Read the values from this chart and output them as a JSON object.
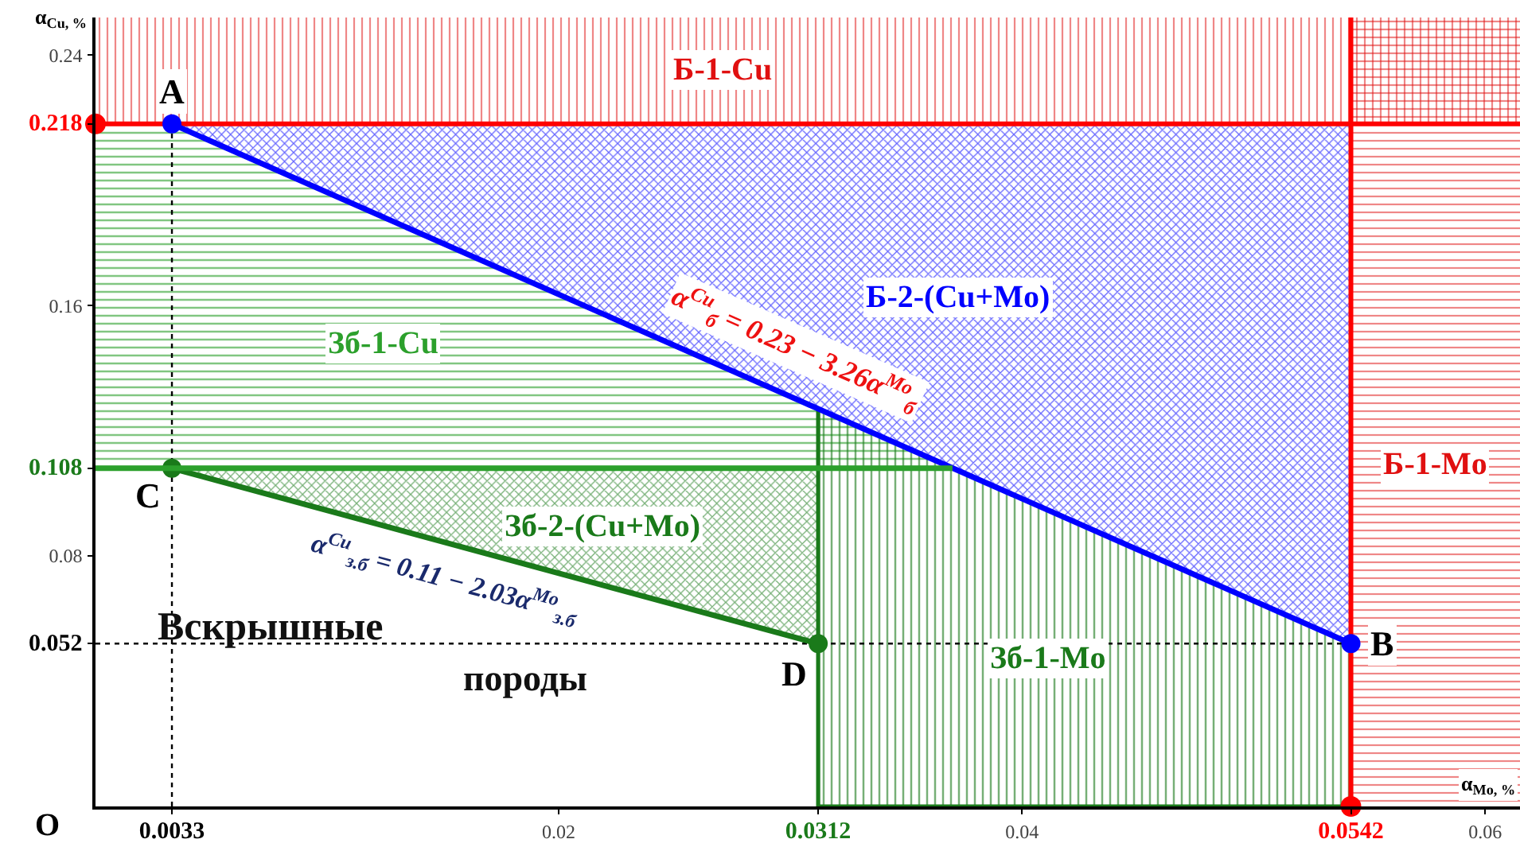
{
  "chart_data": {
    "type": "line",
    "xlabel": "α$_{Mo, %}$",
    "ylabel": "α$_{Cu, %}$",
    "xlim": [
      0,
      0.0615
    ],
    "ylim": [
      0,
      0.252
    ],
    "xticks": [
      0.0033,
      0.02,
      0.0312,
      0.04,
      0.0542,
      0.06
    ],
    "yticks": [
      0.052,
      0.08,
      0.108,
      0.16,
      0.218,
      0.24
    ],
    "line_style": "solid",
    "series": [
      {
        "name": "Б-2-(Cu+Mo)",
        "color": "#0000ff",
        "marker": "circle",
        "x": [
          0.0033,
          0.0542
        ],
        "values": [
          0.218,
          0.052
        ],
        "lower": [
          0.218,
          0.052
        ],
        "upper": [
          0.218,
          0.218
        ]
      },
      {
        "name": "Зб-2-(Cu+Mo)",
        "color": "#1a7a1a",
        "marker": "circle",
        "x": [
          0.0033,
          0.0312
        ],
        "values": [
          0.108,
          0.052
        ],
        "lower": [
          0.108,
          0.052
        ],
        "upper": [
          0.108,
          0.108
        ]
      },
      {
        "name": "Зб-1-Cu",
        "color": "#2ca02c",
        "x": [
          0,
          0.0033,
          0.037
        ],
        "values": [
          0.108,
          0.108,
          0.108
        ],
        "lower": [
          0.108,
          0.108,
          0.108
        ],
        "upper": [
          0.218,
          0.218,
          0.108
        ]
      },
      {
        "name": "Зб-1-Mo",
        "type": "area",
        "color": "#1a7a1a",
        "x": [
          0.0312,
          0.0542
        ],
        "values": [
          0.127,
          0.052
        ]
      },
      {
        "type": "scatter",
        "color": "#ff0000",
        "marker": "circle",
        "x": [
          0,
          0.0542
        ],
        "values": [
          0.218,
          0
        ]
      }
    ],
    "bands": [
      {
        "axis": "y",
        "from": 0.218,
        "to": 0.252,
        "label": "Б-1-Cu",
        "color": "#e01010"
      },
      {
        "axis": "x",
        "from": 0.0542,
        "to": 0.0615,
        "label": "Б-1-Mo",
        "color": "#e01010"
      }
    ],
    "ref_lines": [
      {
        "axis": "x",
        "value": 0.0033,
        "color": "#000000",
        "line_style": "dotted"
      },
      {
        "axis": "y",
        "value": 0.052,
        "color": "#000000",
        "line_style": "dotted"
      },
      {
        "axis": "y",
        "value": 0.218,
        "color": "#ff0000",
        "line_style": "solid"
      },
      {
        "axis": "x",
        "value": 0.0542,
        "color": "#ff0000",
        "line_style": "solid"
      }
    ],
    "annotations": [
      {
        "text": "A",
        "x": 0.0033,
        "y": 0.218
      },
      {
        "text": "B",
        "x": 0.0542,
        "y": 0.052
      },
      {
        "text": "C",
        "x": 0.0033,
        "y": 0.108
      },
      {
        "text": "D",
        "x": 0.0312,
        "y": 0.052
      },
      "O",
      {
        "text": "α$^{Cu}$$_{б}$ = 0.23 − 3.26α$^{Mo}$$_{б}$",
        "x": 0.0294,
        "y": 0.133
      },
      {
        "text": "α$^{Cu}$$_{з.б}$ = 0.11 − 2.03α$^{Mo}$$_{з.б}$",
        "x": 0.0155,
        "y": 0.0835
      },
      "Вскрышные",
      "породы"
    ]
  }
}
